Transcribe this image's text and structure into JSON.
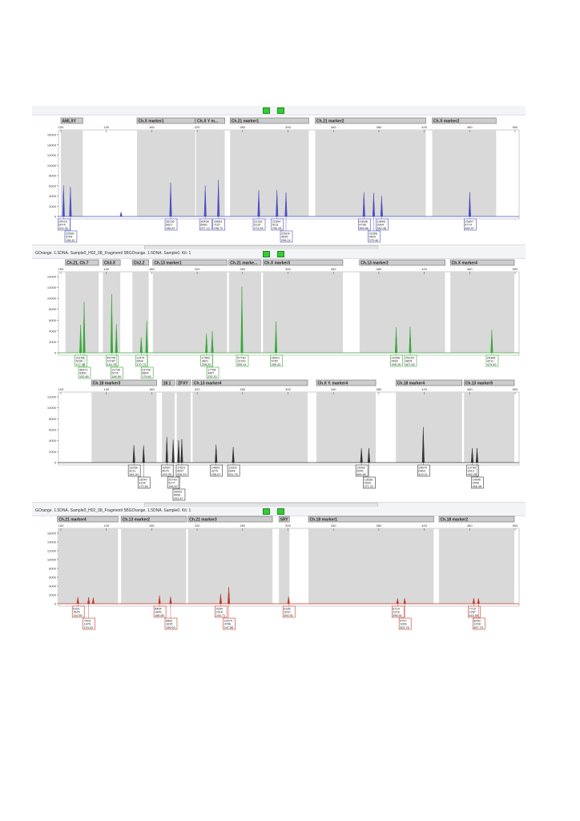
{
  "window": {
    "status_text": "GOrange. 1.5DNA. Sample0_H02_08_Fragment/ 5BGOrange. 1.5DNA. Sample0. Kit: 1",
    "icons": [
      "green-check-icon",
      "green-check-icon"
    ]
  },
  "chart_data": [
    {
      "type": "line",
      "color": "#4b4fc0",
      "ylim": [
        0,
        16000
      ],
      "yticks": [
        0,
        2000,
        4000,
        6000,
        8000,
        10000,
        12000,
        14000,
        16000
      ],
      "xlim": [
        100,
        500
      ],
      "xticks": [
        100,
        140,
        180,
        220,
        260,
        300,
        340,
        380,
        420,
        460,
        500
      ],
      "xtick_labels": [
        "100",
        "",
        "140",
        "",
        "180",
        "",
        "220",
        "",
        "260",
        "",
        "300",
        "",
        "340",
        "",
        "380",
        "",
        "420",
        "",
        "460",
        "",
        "500"
      ],
      "markers": [
        {
          "name": "AMLXY",
          "start": 100,
          "end": 120
        },
        {
          "name": "Ch.X marker1",
          "start": 167,
          "end": 219
        },
        {
          "name": "Ch.X Y m...",
          "start": 219,
          "end": 245
        },
        {
          "name": "Ch.21 marker1",
          "start": 249,
          "end": 319
        },
        {
          "name": "Ch.21 marker2",
          "start": 324,
          "end": 422
        },
        {
          "name": "Ch.X marker2",
          "start": 427,
          "end": 484
        }
      ],
      "peaks": [
        {
          "size": 102.34,
          "height": 6074,
          "label": [
            "24419",
            "6074",
            "102.34"
          ]
        },
        {
          "size": 108.42,
          "height": 5764,
          "label": [
            "22596",
            "5764",
            "108.42"
          ]
        },
        {
          "size": 153,
          "height": 900,
          "label": null
        },
        {
          "size": 196.67,
          "height": 6627,
          "label": [
            "35236",
            "6627",
            "196.67"
          ]
        },
        {
          "size": 227.12,
          "height": 6080,
          "label": [
            "26468",
            "6080",
            "227.12"
          ]
        },
        {
          "size": 238.72,
          "height": 7157,
          "label": [
            "33663",
            "7157",
            "238.72"
          ]
        },
        {
          "size": 274.26,
          "height": 5110,
          "label": [
            "22182",
            "5110",
            "274.26"
          ]
        },
        {
          "size": 290.28,
          "height": 5211,
          "label": [
            "22304",
            "5211",
            "290.28"
          ]
        },
        {
          "size": 298.24,
          "height": 4695,
          "label": [
            "22604",
            "4695",
            "298.24"
          ]
        },
        {
          "size": 366.86,
          "height": 4798,
          "label": [
            "23698",
            "4798",
            "366.86"
          ]
        },
        {
          "size": 375.46,
          "height": 4609,
          "label": [
            "22306",
            "4609",
            "375.46"
          ]
        },
        {
          "size": 382.48,
          "height": 3994,
          "label": [
            "19899",
            "3994",
            "382.48"
          ]
        },
        {
          "size": 460.07,
          "height": 4774,
          "label": [
            "25807",
            "4774",
            "460.07"
          ]
        }
      ]
    },
    {
      "type": "line",
      "color": "#3aa83a",
      "ylim": [
        0,
        14000
      ],
      "yticks": [
        0,
        2000,
        4000,
        6000,
        8000,
        10000,
        12000,
        14000
      ],
      "xlim": [
        100,
        500
      ],
      "xticks": [
        100,
        140,
        180,
        220,
        260,
        300,
        340,
        380,
        420,
        460,
        500
      ],
      "markers": [
        {
          "name": "Ch.21, Ch.7",
          "start": 104,
          "end": 134
        },
        {
          "name": "Ch3.X",
          "start": 137,
          "end": 153
        },
        {
          "name": "Ch2.2",
          "start": 163,
          "end": 178
        },
        {
          "name": "Ch.13 marker1",
          "start": 181,
          "end": 247
        },
        {
          "name": "Ch.21 marke...",
          "start": 248,
          "end": 277
        },
        {
          "name": "Ch.X marker3",
          "start": 278,
          "end": 349
        },
        {
          "name": "Ch.13 marker2",
          "start": 363,
          "end": 439
        },
        {
          "name": "Ch.X marker4",
          "start": 443,
          "end": 500
        }
      ],
      "peaks": [
        {
          "size": 117.38,
          "height": 5160,
          "label": [
            "21159",
            "5160",
            "117.38"
          ]
        },
        {
          "size": 120.46,
          "height": 9359,
          "label": [
            "46471",
            "9359",
            "120.46"
          ]
        },
        {
          "size": 144.75,
          "height": 10787,
          "label": [
            "46746",
            "10787",
            "144.75"
          ]
        },
        {
          "size": 148.9,
          "height": 5276,
          "label": [
            "21799",
            "5276",
            "148.90"
          ]
        },
        {
          "size": 170.73,
          "height": 2893,
          "label": [
            "11474",
            "2893",
            "170.73"
          ]
        },
        {
          "size": 175.6,
          "height": 5864,
          "label": [
            "23748",
            "5864",
            "175.60"
          ]
        },
        {
          "size": 228.2,
          "height": 3621,
          "label": [
            "17602",
            "3621",
            "228.20"
          ]
        },
        {
          "size": 233.33,
          "height": 3967,
          "label": [
            "17754",
            "3967",
            "233.33"
          ]
        },
        {
          "size": 259.41,
          "height": 12109,
          "label": [
            "57736",
            "12109",
            "259.41"
          ]
        },
        {
          "size": 289.43,
          "height": 5752,
          "label": [
            "28021",
            "5752",
            "289.43"
          ]
        },
        {
          "size": 395.25,
          "height": 4692,
          "label": [
            "24256",
            "4692",
            "395.25"
          ]
        },
        {
          "size": 407.59,
          "height": 4825,
          "label": [
            "25228",
            "4825",
            "407.59"
          ]
        },
        {
          "size": 479.49,
          "height": 4211,
          "label": [
            "26366",
            "4211",
            "479.49"
          ]
        }
      ]
    },
    {
      "type": "line",
      "color": "#333333",
      "ylim": [
        0,
        12000
      ],
      "yticks": [
        0,
        2000,
        4000,
        6000,
        8000,
        10000,
        12000
      ],
      "xlim": [
        100,
        500
      ],
      "xticks": [
        100,
        140,
        180,
        220,
        260,
        300,
        340,
        380,
        420,
        460,
        500
      ],
      "markers": [
        {
          "name": "Ch.18 marker3",
          "start": 127,
          "end": 185
        },
        {
          "name": "18.1",
          "start": 189,
          "end": 201
        },
        {
          "name": "ZFXY",
          "start": 202,
          "end": 215
        },
        {
          "name": "Ch.13 marker4",
          "start": 216,
          "end": 318
        },
        {
          "name": "Ch.X Y. marker4",
          "start": 325,
          "end": 378
        },
        {
          "name": "Ch.18 marker4",
          "start": 395,
          "end": 454
        },
        {
          "name": "Ch.13 marker5",
          "start": 455,
          "end": 500
        }
      ],
      "peaks": [
        {
          "size": 164.3,
          "height": 3211,
          "label": [
            "13266",
            "3211",
            "164.30"
          ]
        },
        {
          "size": 172.84,
          "height": 3125,
          "label": [
            "13047",
            "3125",
            "172.84"
          ]
        },
        {
          "size": 193.3,
          "height": 4676,
          "label": [
            "19997",
            "4676",
            "193.30"
          ]
        },
        {
          "size": 198.87,
          "height": 4177,
          "label": [
            "20749",
            "4177",
            "198.87"
          ]
        },
        {
          "size": 203.67,
          "height": 4066,
          "label": [
            "20051",
            "4066",
            "203.67"
          ]
        },
        {
          "size": 206.49,
          "height": 4267,
          "label": [
            "17621",
            "4267",
            "206.49"
          ]
        },
        {
          "size": 236.67,
          "height": 3279,
          "label": [
            "14603",
            "3279",
            "236.67"
          ]
        },
        {
          "size": 251.76,
          "height": 2848,
          "label": [
            "13302",
            "2848",
            "251.76"
          ]
        },
        {
          "size": 364.66,
          "height": 2646,
          "label": [
            "13953",
            "2646",
            "364.66"
          ]
        },
        {
          "size": 371.22,
          "height": 2633,
          "label": [
            "13536",
            "2633",
            "371.22"
          ]
        },
        {
          "size": 419.11,
          "height": 6463,
          "label": [
            "24675",
            "6463",
            "419.11"
          ]
        },
        {
          "size": 462.26,
          "height": 2612,
          "label": [
            "13735",
            "2612",
            "462.26"
          ]
        },
        {
          "size": 466.48,
          "height": 2640,
          "label": [
            "14040",
            "2640",
            "466.48"
          ]
        }
      ]
    },
    {
      "type": "line",
      "color": "#c0392b",
      "ylim": [
        0,
        16000
      ],
      "yticks": [
        0,
        2000,
        4000,
        6000,
        8000,
        10000,
        12000,
        14000,
        16000
      ],
      "xlim": [
        100,
        500
      ],
      "xticks": [
        100,
        140,
        180,
        220,
        260,
        300,
        340,
        380,
        420,
        460,
        500
      ],
      "markers": [
        {
          "name": "Ch.21 marker4",
          "start": 97,
          "end": 151
        },
        {
          "name": "Ch.13 marker2",
          "start": 153,
          "end": 211
        },
        {
          "name": "Ch.21 marker3",
          "start": 212,
          "end": 287
        },
        {
          "name": "SRY",
          "start": 292,
          "end": 302
        },
        {
          "name": "Ch.18 marker1",
          "start": 318,
          "end": 429
        },
        {
          "name": "Ch.18 marker2",
          "start": 433,
          "end": 500
        }
      ],
      "peaks": [
        {
          "size": 114.95,
          "height": 1525,
          "label": [
            "6161",
            "1525",
            "114.95"
          ]
        },
        {
          "size": 124.42,
          "height": 1476,
          "label": [
            "7515",
            "1476",
            "124.42"
          ]
        },
        {
          "size": 128.5,
          "height": 1400,
          "label": null
        },
        {
          "size": 186.85,
          "height": 1846,
          "label": [
            "8464",
            "1846",
            "186.85"
          ]
        },
        {
          "size": 196.63,
          "height": 1615,
          "label": [
            "6892",
            "1615",
            "196.63"
          ]
        },
        {
          "size": 240.71,
          "height": 2218,
          "label": [
            "9294",
            "2218",
            "240.71"
          ]
        },
        {
          "size": 247.86,
          "height": 3796,
          "label": [
            "11874",
            "3796",
            "247.86"
          ]
        },
        {
          "size": 300.51,
          "height": 1610,
          "label": [
            "6165",
            "1610",
            "300.51"
          ]
        },
        {
          "size": 396.51,
          "height": 1216,
          "label": [
            "6714",
            "1216",
            "396.51"
          ]
        },
        {
          "size": 402.76,
          "height": 1266,
          "label": [
            "6747",
            "1266",
            "402.76"
          ]
        },
        {
          "size": 463.59,
          "height": 1287,
          "label": [
            "7715",
            "1287",
            "463.59"
          ]
        },
        {
          "size": 467.76,
          "height": 1228,
          "label": [
            "8250",
            "1228",
            "467.76"
          ]
        }
      ]
    }
  ]
}
